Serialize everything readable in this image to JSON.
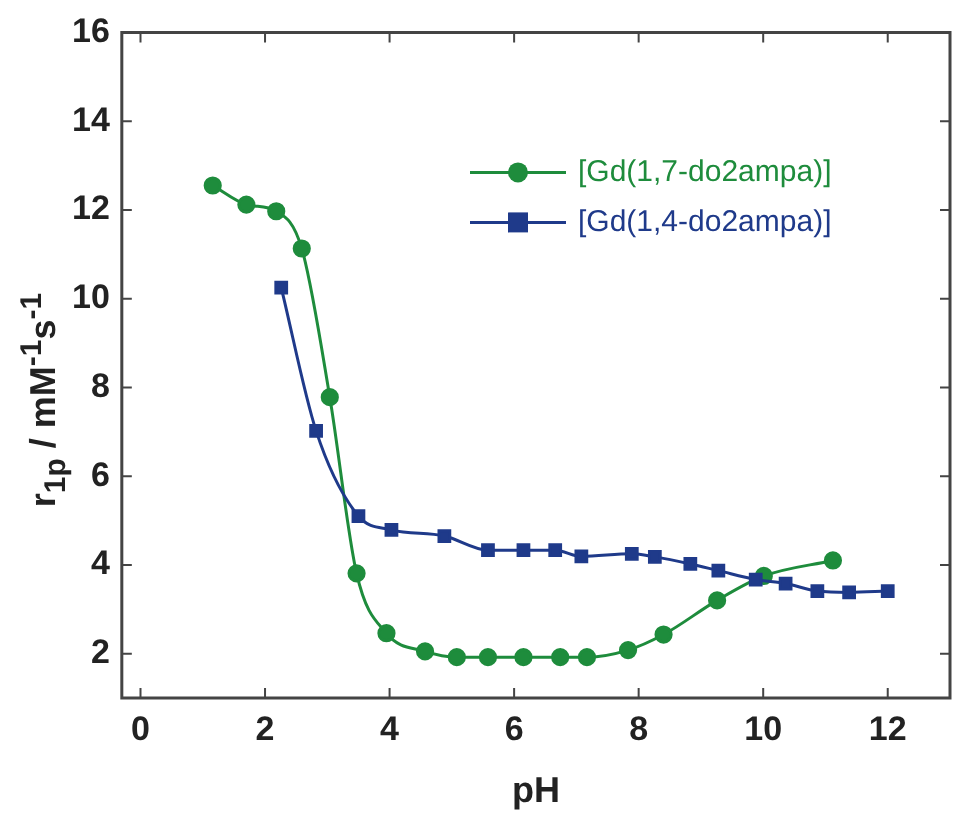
{
  "chart_data": {
    "type": "line",
    "xlabel": "pH",
    "ylabel": "r$_{1p}$ / mM$^{-1}$s$^{-1}$",
    "xlim": [
      -0.3,
      13
    ],
    "ylim": [
      1,
      16
    ],
    "xticks": [
      0,
      2,
      4,
      6,
      8,
      10,
      12
    ],
    "yticks": [
      2,
      4,
      6,
      8,
      10,
      12,
      14,
      16
    ],
    "grid": false,
    "legend": "top right",
    "series": [
      {
        "name": "[Gd(1,7-do2ampa)]",
        "color": "#1e8c3c",
        "marker": "circle",
        "x": [
          1.16,
          1.7,
          2.18,
          2.59,
          3.04,
          3.47,
          3.95,
          4.57,
          5.08,
          5.58,
          6.15,
          6.74,
          7.17,
          7.83,
          8.4,
          9.26,
          10.01,
          11.12
        ],
        "values": [
          12.55,
          12.12,
          11.97,
          11.13,
          7.78,
          3.81,
          2.46,
          2.05,
          1.92,
          1.92,
          1.92,
          1.92,
          1.92,
          2.08,
          2.43,
          3.2,
          3.75,
          4.1
        ]
      },
      {
        "name": "[Gd(1,4-do2ampa)]",
        "color": "#1f3a8a",
        "marker": "square",
        "x": [
          2.26,
          2.82,
          3.5,
          4.03,
          4.88,
          5.58,
          6.15,
          6.66,
          7.08,
          7.89,
          8.26,
          8.83,
          9.28,
          9.88,
          10.36,
          10.87,
          11.38,
          12.0
        ],
        "values": [
          10.25,
          7.02,
          5.1,
          4.79,
          4.65,
          4.33,
          4.33,
          4.33,
          4.19,
          4.25,
          4.18,
          4.02,
          3.87,
          3.67,
          3.58,
          3.41,
          3.38,
          3.41
        ]
      }
    ]
  }
}
